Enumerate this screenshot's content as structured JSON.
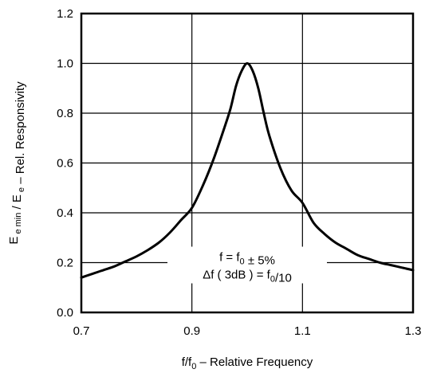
{
  "chart_data": {
    "type": "line",
    "title": "",
    "xlabel": "f/f₀ – Relative Frequency",
    "ylabel": "E e min / E e – Rel. Responsivity",
    "xlim": [
      0.7,
      1.3
    ],
    "ylim": [
      0.0,
      1.2
    ],
    "x_ticks": [
      0.7,
      0.9,
      1.1,
      1.3
    ],
    "y_ticks": [
      0.0,
      0.2,
      0.4,
      0.6,
      0.8,
      1.0,
      1.2
    ],
    "x_tick_labels": [
      "0.7",
      "0.9",
      "1.1",
      "1.3"
    ],
    "y_tick_labels": [
      "0.0",
      "0.2",
      "0.4",
      "0.6",
      "0.8",
      "1.0",
      "1.2"
    ],
    "grid": true,
    "annotation": {
      "line1": "f = f0 ± 5%",
      "line2": "Δf ( 3dB ) = f0/10"
    },
    "series": [
      {
        "x": [
          0.7,
          0.72,
          0.74,
          0.76,
          0.78,
          0.8,
          0.82,
          0.84,
          0.86,
          0.88,
          0.9,
          0.92,
          0.94,
          0.96,
          0.97,
          0.98,
          0.99,
          1.0,
          1.01,
          1.02,
          1.03,
          1.04,
          1.06,
          1.08,
          1.1,
          1.12,
          1.14,
          1.16,
          1.18,
          1.2,
          1.22,
          1.24,
          1.26,
          1.28,
          1.3
        ],
        "y": [
          0.14,
          0.155,
          0.17,
          0.185,
          0.205,
          0.225,
          0.25,
          0.28,
          0.32,
          0.37,
          0.42,
          0.51,
          0.62,
          0.75,
          0.82,
          0.91,
          0.97,
          1.0,
          0.97,
          0.9,
          0.8,
          0.71,
          0.58,
          0.49,
          0.44,
          0.36,
          0.315,
          0.28,
          0.255,
          0.23,
          0.215,
          0.2,
          0.19,
          0.18,
          0.17
        ]
      }
    ]
  }
}
